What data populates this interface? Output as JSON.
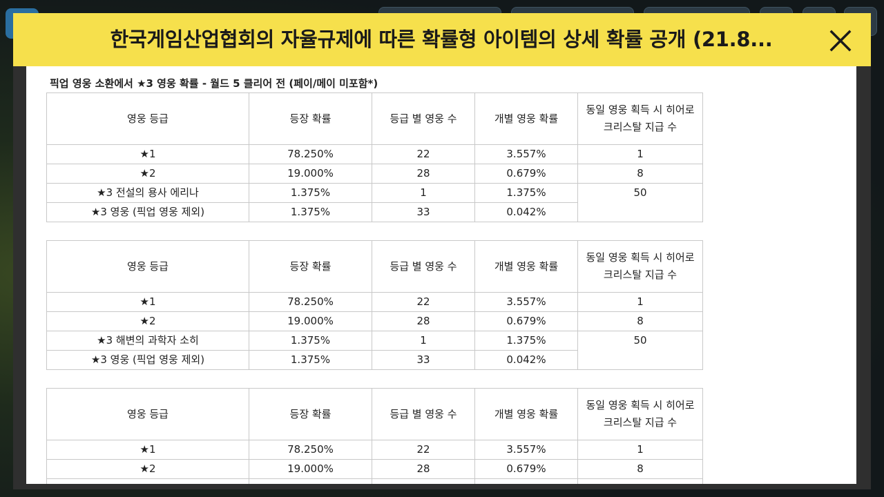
{
  "dialog": {
    "title": "한국게임산업협회의 자율규제에 따른 확률형 아이템의 상세 확률 공개 (21.8...",
    "close_icon": "close-icon"
  },
  "section": {
    "title": "픽업 영웅 소환에서 ★3 영웅 확률 - 월드 5 클리어 전 (페이/메이 미포함*)"
  },
  "columns": [
    "영웅 등급",
    "등장 확률",
    "등급 별 영웅 수",
    "개별 영웅 확률",
    "동일 영웅 획득 시 히어로 크리스탈 지급 수"
  ],
  "tables": [
    {
      "rows": [
        {
          "grade": "★1",
          "rate": "78.250%",
          "count": "22",
          "individual": "3.557%",
          "crystal": "1"
        },
        {
          "grade": "★2",
          "rate": "19.000%",
          "count": "28",
          "individual": "0.679%",
          "crystal": "8"
        },
        {
          "grade": "★3 전설의 용사 에리나",
          "rate": "1.375%",
          "count": "1",
          "individual": "1.375%",
          "crystal": "50"
        },
        {
          "grade": "★3 영웅 (픽업 영웅 제외)",
          "rate": "1.375%",
          "count": "33",
          "individual": "0.042%"
        }
      ]
    },
    {
      "rows": [
        {
          "grade": "★1",
          "rate": "78.250%",
          "count": "22",
          "individual": "3.557%",
          "crystal": "1"
        },
        {
          "grade": "★2",
          "rate": "19.000%",
          "count": "28",
          "individual": "0.679%",
          "crystal": "8"
        },
        {
          "grade": "★3 해변의 과학자 소히",
          "rate": "1.375%",
          "count": "1",
          "individual": "1.375%",
          "crystal": "50"
        },
        {
          "grade": "★3 영웅 (픽업 영웅 제외)",
          "rate": "1.375%",
          "count": "33",
          "individual": "0.042%"
        }
      ]
    },
    {
      "rows": [
        {
          "grade": "★1",
          "rate": "78.250%",
          "count": "22",
          "individual": "3.557%",
          "crystal": "1"
        },
        {
          "grade": "★2",
          "rate": "19.000%",
          "count": "28",
          "individual": "0.679%",
          "crystal": "8"
        }
      ]
    }
  ]
}
